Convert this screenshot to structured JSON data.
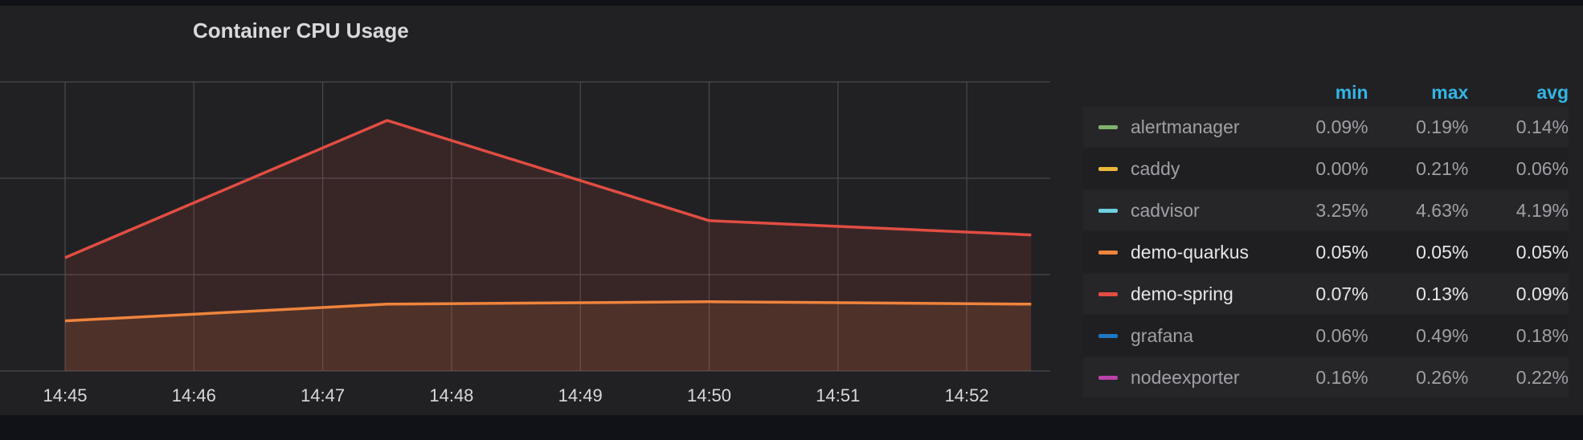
{
  "panel": {
    "title": "Container CPU Usage"
  },
  "legend": {
    "columns": [
      "min",
      "max",
      "avg"
    ],
    "items": [
      {
        "name": "alertmanager",
        "color": "#7eb26d",
        "min": "0.09%",
        "max": "0.19%",
        "avg": "0.14%",
        "active": false
      },
      {
        "name": "caddy",
        "color": "#eab839",
        "min": "0.00%",
        "max": "0.21%",
        "avg": "0.06%",
        "active": false
      },
      {
        "name": "cadvisor",
        "color": "#6ed0e0",
        "min": "3.25%",
        "max": "4.63%",
        "avg": "4.19%",
        "active": false
      },
      {
        "name": "demo-quarkus",
        "color": "#ef843c",
        "min": "0.05%",
        "max": "0.05%",
        "avg": "0.05%",
        "active": true
      },
      {
        "name": "demo-spring",
        "color": "#e24d42",
        "min": "0.07%",
        "max": "0.13%",
        "avg": "0.09%",
        "active": true
      },
      {
        "name": "grafana",
        "color": "#1f78c1",
        "min": "0.06%",
        "max": "0.49%",
        "avg": "0.18%",
        "active": false
      },
      {
        "name": "nodeexporter",
        "color": "#ba43a9",
        "min": "0.16%",
        "max": "0.26%",
        "avg": "0.22%",
        "active": false
      }
    ]
  },
  "chart_data": {
    "type": "area",
    "title": "Container CPU Usage",
    "x_ticks": [
      "14:45",
      "14:46",
      "14:47",
      "14:48",
      "14:49",
      "14:50",
      "14:51",
      "14:52"
    ],
    "grid": true,
    "series": [
      {
        "name": "demo-spring",
        "color": "#e24d42",
        "fill": "#e24d42",
        "points": [
          [
            "14:45:00",
            0.0725
          ],
          [
            "14:47:30",
            0.13
          ],
          [
            "14:50:00",
            0.088
          ],
          [
            "14:52:30",
            0.082
          ]
        ]
      },
      {
        "name": "demo-quarkus",
        "color": "#ef843c",
        "fill": "#ef843c",
        "points": [
          [
            "14:45:00",
            0.046
          ],
          [
            "14:47:30",
            0.053
          ],
          [
            "14:50:00",
            0.054
          ],
          [
            "14:52:30",
            0.053
          ]
        ]
      }
    ],
    "y_gridlines": [
      0.025,
      0.075,
      0.125,
      0.175
    ]
  }
}
